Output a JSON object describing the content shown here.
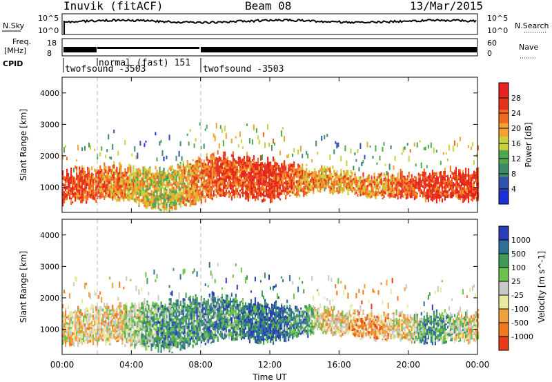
{
  "header": {
    "station": "Inuvik (fitACF)",
    "beam": "Beam 08",
    "date": "13/Mar/2015"
  },
  "panels": {
    "nsky_label": "N.Sky",
    "nsearch_label": "N.Search",
    "nsky_tick_high": "10^5",
    "nsky_tick_low": "10^0",
    "freq_label_top": "Freq.",
    "freq_label_bottom": "[MHz]",
    "freq_tick_high": "18",
    "freq_tick_low": "8",
    "nave_label": "Nave",
    "nave_tick_high": "60",
    "nave_tick_low": "0",
    "cpid_label": "CPID",
    "cpid_modes": [
      "twofsound -3503",
      "normal (fast) 151",
      "twofsound -3503"
    ]
  },
  "colors": {
    "power_scale": [
      "#1a2fd6",
      "#2f52b0",
      "#3f8a66",
      "#4fa84f",
      "#c7d23a",
      "#f2a22e",
      "#ef6a1f",
      "#e5321a",
      "#e8211e"
    ],
    "velocity_scale": [
      "#2a3db8",
      "#2e6f9a",
      "#3f9a56",
      "#6dc24a",
      "#c8c8c8",
      "#e8e8a0",
      "#f0a040",
      "#f07a20",
      "#e83a18"
    ]
  },
  "chart_data": [
    {
      "type": "heatmap",
      "title": "",
      "xlabel": "",
      "ylabel": "Slant Range [km]",
      "xlim": [
        "00:00",
        "24:00"
      ],
      "ylim": [
        200,
        4500
      ],
      "yticks": [
        1000,
        2000,
        3000,
        4000
      ],
      "colorbar": {
        "label": "Power [dB]",
        "ticks": [
          4,
          8,
          12,
          16,
          20,
          24,
          28
        ],
        "range": [
          0,
          32
        ]
      },
      "echo_band_km": [
        {
          "t": 0,
          "lo": 500,
          "hi": 1400,
          "level": 28
        },
        {
          "t": 3,
          "lo": 600,
          "hi": 1600,
          "level": 22
        },
        {
          "t": 6,
          "lo": 300,
          "hi": 1500,
          "level": 16
        },
        {
          "t": 9,
          "lo": 700,
          "hi": 2000,
          "level": 26
        },
        {
          "t": 12,
          "lo": 600,
          "hi": 1800,
          "level": 28
        },
        {
          "t": 15,
          "lo": 900,
          "hi": 1500,
          "level": 20
        },
        {
          "t": 18,
          "lo": 700,
          "hi": 1300,
          "level": 22
        },
        {
          "t": 21,
          "lo": 600,
          "hi": 1400,
          "level": 28
        },
        {
          "t": 24,
          "lo": 600,
          "hi": 1500,
          "level": 28
        }
      ]
    },
    {
      "type": "heatmap",
      "title": "",
      "xlabel": "Time UT",
      "ylabel": "Slant Range [km]",
      "xlim": [
        "00:00",
        "24:00"
      ],
      "xticks": [
        "00:00",
        "04:00",
        "08:00",
        "12:00",
        "16:00",
        "20:00",
        "00:00"
      ],
      "ylim": [
        200,
        4500
      ],
      "yticks": [
        1000,
        2000,
        3000,
        4000
      ],
      "colorbar": {
        "label": "Velocity [m s^-1]",
        "ticks": [
          1000,
          500,
          100,
          25,
          -25,
          -100,
          -500,
          -1000
        ]
      },
      "echo_band_km": [
        {
          "t": 0,
          "lo": 500,
          "hi": 1500,
          "level": -100
        },
        {
          "t": 3,
          "lo": 600,
          "hi": 1700,
          "level": -100
        },
        {
          "t": 6,
          "lo": 300,
          "hi": 1800,
          "level": 100
        },
        {
          "t": 9,
          "lo": 700,
          "hi": 2000,
          "level": 100
        },
        {
          "t": 12,
          "lo": 600,
          "hi": 1800,
          "level": 500
        },
        {
          "t": 15,
          "lo": 900,
          "hi": 1600,
          "level": -100
        },
        {
          "t": 18,
          "lo": 700,
          "hi": 1400,
          "level": -500
        },
        {
          "t": 21,
          "lo": 600,
          "hi": 1400,
          "level": 100
        },
        {
          "t": 24,
          "lo": 600,
          "hi": 1500,
          "level": -100
        }
      ]
    }
  ]
}
